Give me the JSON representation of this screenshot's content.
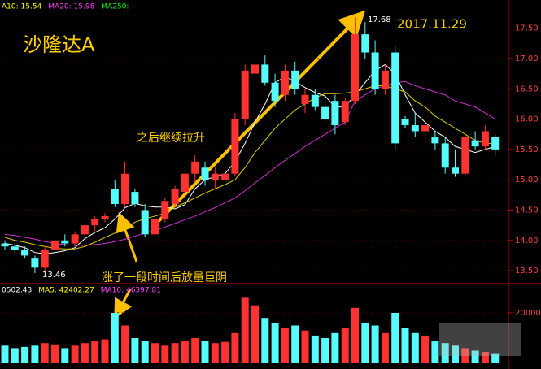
{
  "chart_data": [
    {
      "type": "candlestick",
      "title": "沙隆达A",
      "header_labels": [
        {
          "text": "A10: 15.54",
          "color": "#ffff00"
        },
        {
          "text": "MA20: 15.98",
          "color": "#ff44ff"
        },
        {
          "text": "MA250: -",
          "color": "#00ff00"
        }
      ],
      "annotations": [
        "2017.11.29",
        "之后继续拉升",
        "涨了一段时间后放量巨阴",
        "17.68",
        "13.46"
      ],
      "up_color": "#ff3232",
      "down_color": "#54fcfc",
      "open": [
        13.95,
        13.9,
        13.85,
        13.7,
        13.55,
        13.85,
        14.0,
        13.95,
        14.1,
        14.25,
        14.35,
        14.85,
        14.6,
        14.8,
        14.5,
        14.1,
        14.35,
        14.6,
        14.8,
        15.1,
        15.2,
        15.0,
        15.0,
        15.1,
        16.0,
        16.75,
        16.9,
        16.6,
        16.4,
        16.8,
        16.25,
        16.4,
        16.2,
        16.3,
        15.95,
        16.3,
        17.4,
        17.1,
        16.5,
        17.1,
        16.0,
        15.9,
        15.8,
        15.7,
        15.6,
        15.2,
        15.1,
        15.65,
        15.55,
        15.7
      ],
      "high": [
        14.0,
        13.95,
        13.9,
        13.75,
        13.9,
        14.05,
        14.1,
        14.15,
        14.3,
        14.4,
        14.45,
        15.0,
        15.3,
        14.85,
        14.6,
        14.45,
        14.7,
        14.9,
        15.2,
        15.4,
        15.3,
        15.2,
        15.2,
        16.1,
        16.9,
        17.1,
        17.05,
        16.75,
        16.9,
        16.95,
        16.5,
        16.5,
        16.3,
        16.4,
        16.35,
        17.68,
        17.6,
        17.3,
        16.9,
        17.2,
        16.05,
        16.1,
        16.0,
        15.8,
        15.7,
        15.5,
        15.75,
        15.8,
        15.9,
        15.75
      ],
      "low": [
        13.85,
        13.8,
        13.7,
        13.46,
        13.5,
        13.8,
        13.9,
        13.9,
        14.05,
        14.15,
        14.3,
        14.55,
        14.55,
        14.55,
        14.05,
        14.05,
        14.3,
        14.55,
        14.75,
        14.95,
        14.9,
        14.85,
        14.9,
        15.05,
        15.9,
        16.6,
        16.55,
        16.2,
        16.3,
        16.4,
        16.1,
        16.15,
        15.95,
        15.75,
        15.9,
        16.25,
        17.0,
        16.4,
        16.4,
        15.5,
        15.85,
        15.7,
        15.6,
        15.5,
        15.1,
        15.05,
        15.05,
        15.5,
        15.5,
        15.4
      ],
      "close": [
        13.9,
        13.85,
        13.75,
        13.55,
        13.85,
        14.0,
        13.95,
        14.1,
        14.25,
        14.35,
        14.4,
        14.6,
        15.1,
        14.6,
        14.1,
        14.35,
        14.65,
        14.85,
        15.1,
        15.3,
        15.0,
        15.1,
        15.1,
        16.0,
        16.8,
        16.9,
        16.6,
        16.3,
        16.8,
        16.5,
        16.4,
        16.2,
        16.0,
        15.9,
        16.3,
        17.4,
        17.1,
        16.5,
        16.8,
        15.6,
        15.9,
        15.8,
        15.9,
        15.6,
        15.2,
        15.1,
        15.7,
        15.55,
        15.8,
        15.5
      ],
      "series": [
        {
          "color": "#ffffff",
          "values": [
            13.95,
            13.92,
            13.88,
            13.8,
            13.78,
            13.8,
            13.83,
            13.88,
            14.03,
            14.13,
            14.21,
            14.35,
            14.54,
            14.61,
            14.57,
            14.55,
            14.55,
            14.52,
            14.59,
            14.85,
            15.0,
            15.05,
            15.1,
            15.3,
            15.6,
            15.95,
            16.25,
            16.6,
            16.7,
            16.62,
            16.52,
            16.44,
            16.38,
            16.2,
            16.2,
            16.4,
            16.6,
            16.8,
            16.9,
            16.75,
            16.4,
            16.1,
            15.95,
            15.8,
            15.7,
            15.55,
            15.5,
            15.45,
            15.5,
            15.55
          ]
        },
        {
          "color": "#e0d000",
          "values": [
            14.05,
            14.0,
            13.97,
            13.93,
            13.9,
            13.87,
            13.86,
            13.86,
            13.9,
            13.97,
            14.05,
            14.12,
            14.2,
            14.3,
            14.36,
            14.4,
            14.45,
            14.55,
            14.62,
            14.7,
            14.78,
            14.85,
            14.92,
            15.0,
            15.2,
            15.45,
            15.65,
            15.85,
            16.0,
            16.15,
            16.25,
            16.35,
            16.42,
            16.42,
            16.43,
            16.45,
            16.5,
            16.55,
            16.55,
            16.5,
            16.45,
            16.3,
            16.2,
            16.05,
            15.95,
            15.85,
            15.75,
            15.65,
            15.6,
            15.6
          ]
        },
        {
          "color": "#cc33cc",
          "values": [
            14.1,
            14.08,
            14.05,
            14.02,
            13.98,
            13.95,
            13.93,
            13.92,
            13.92,
            13.93,
            13.95,
            13.98,
            14.02,
            14.07,
            14.12,
            14.17,
            14.22,
            14.28,
            14.34,
            14.4,
            14.47,
            14.54,
            14.62,
            14.7,
            14.82,
            14.95,
            15.07,
            15.2,
            15.32,
            15.43,
            15.55,
            15.65,
            15.75,
            15.85,
            15.95,
            16.3,
            16.4,
            16.5,
            16.55,
            16.6,
            16.62,
            16.55,
            16.5,
            16.45,
            16.4,
            16.3,
            16.25,
            16.2,
            16.1,
            16.0
          ]
        }
      ],
      "ylim": [
        13.3,
        17.75
      ],
      "yticks": [
        {
          "value": 13.5,
          "label": "13.50"
        },
        {
          "value": 14,
          "label": "14.00"
        },
        {
          "value": 14.5,
          "label": "14.50"
        },
        {
          "value": 15,
          "label": "15.00"
        },
        {
          "value": 15.5,
          "label": "15.50"
        },
        {
          "value": 16,
          "label": "16.00"
        },
        {
          "value": 16.5,
          "label": "16.50"
        },
        {
          "value": 17,
          "label": "17.00"
        },
        {
          "value": 17.5,
          "label": "17.50"
        }
      ]
    },
    {
      "type": "bar",
      "header_labels": [
        {
          "text": "0502.43",
          "color": "#ffffff"
        },
        {
          "text": "MA5: 42402.27",
          "color": "#ffff00"
        },
        {
          "text": "MA10: 46397.81",
          "color": "#ff44ff"
        }
      ],
      "values": [
        7000,
        6000,
        6500,
        7000,
        8000,
        7500,
        6000,
        7000,
        8000,
        9000,
        9500,
        20000,
        15000,
        10000,
        9000,
        8000,
        7000,
        8000,
        9000,
        10000,
        9000,
        8000,
        8500,
        12000,
        26000,
        23000,
        18000,
        16000,
        14000,
        15000,
        13000,
        11000,
        10000,
        12000,
        14000,
        22000,
        16000,
        15000,
        12000,
        20000,
        14000,
        12000,
        11000,
        9000,
        8000,
        7000,
        6000,
        5000,
        4500,
        4000
      ],
      "ylim": [
        0,
        30000
      ],
      "yticks": [
        20000
      ]
    }
  ]
}
